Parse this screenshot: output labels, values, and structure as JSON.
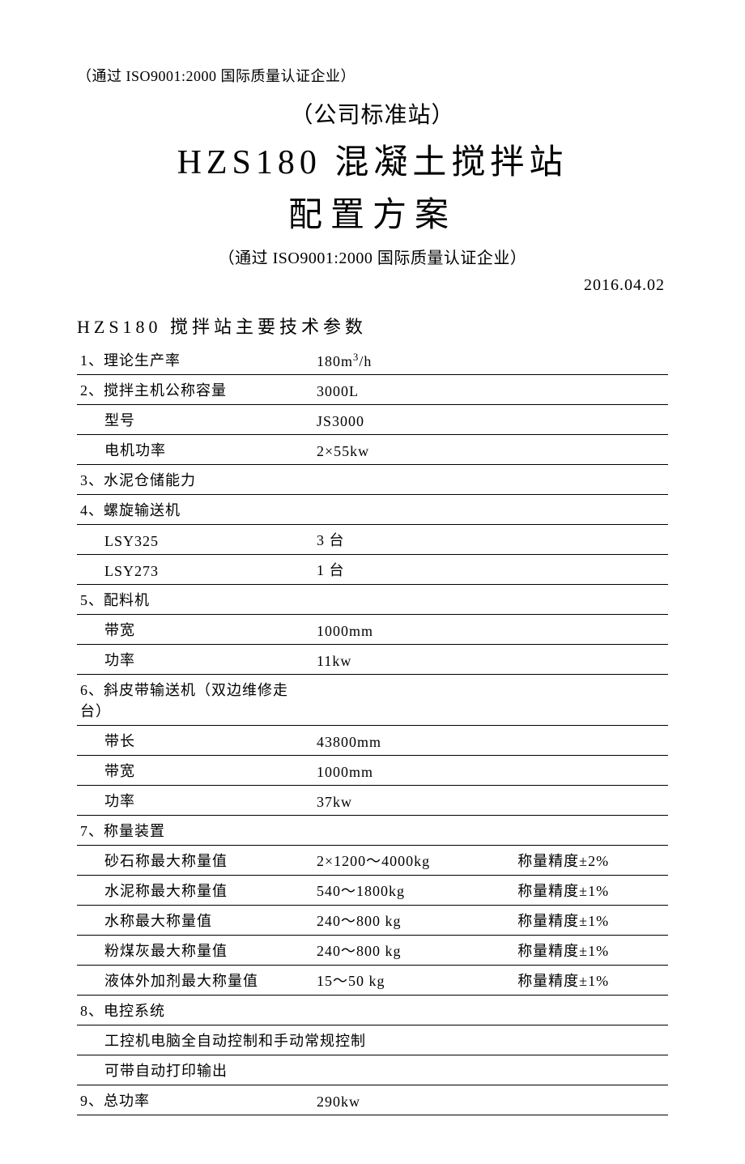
{
  "header": {
    "cert_top": "（通过 ISO9001:2000 国际质量认证企业）",
    "subtitle": "（公司标准站）",
    "title_line1": "HZS180 混凝土搅拌站",
    "title_line2": "配置方案",
    "cert_mid": "（通过 ISO9001:2000 国际质量认证企业）",
    "date": "2016.04.02"
  },
  "section_title": "HZS180 搅拌站主要技术参数",
  "rows": [
    {
      "c1": "1、理论生产率",
      "c2_html": "180m<sup>3</sup>/h",
      "c3": ""
    },
    {
      "c1": "2、搅拌主机公称容量",
      "c2": "3000L",
      "c3": ""
    },
    {
      "c1": "型号",
      "c2": "JS3000",
      "c3": "",
      "indent": true
    },
    {
      "c1": "电机功率",
      "c2": "2×55kw",
      "c3": "",
      "indent": true
    },
    {
      "c1": "3、水泥仓储能力",
      "c2": "",
      "c3": ""
    },
    {
      "c1": "4、螺旋输送机",
      "c2": "",
      "c3": ""
    },
    {
      "c1": "LSY325",
      "c2": "3 台",
      "c3": "",
      "indent": true
    },
    {
      "c1": "LSY273",
      "c2": "1 台",
      "c3": "",
      "indent": true
    },
    {
      "c1": "5、配料机",
      "c2": "",
      "c3": ""
    },
    {
      "c1": "带宽",
      "c2": "1000mm",
      "c3": "",
      "indent": true
    },
    {
      "c1": "功率",
      "c2": "11kw",
      "c3": "",
      "indent": true
    },
    {
      "c1": "6、斜皮带输送机（双边维修走台）",
      "c2": "",
      "c3": ""
    },
    {
      "c1": "带长",
      "c2": "43800mm",
      "c3": "",
      "indent": true
    },
    {
      "c1": "带宽",
      "c2": "1000mm",
      "c3": "",
      "indent": true
    },
    {
      "c1": "功率",
      "c2": "37kw",
      "c3": "",
      "indent": true
    },
    {
      "c1": "7、称量装置",
      "c2": "",
      "c3": ""
    },
    {
      "c1": "砂石称最大称量值",
      "c2": "2×1200～4000kg",
      "c3": "称量精度±2%",
      "indent": true
    },
    {
      "c1": "水泥称最大称量值",
      "c2": "540～1800kg",
      "c3": "称量精度±1%",
      "indent": true
    },
    {
      "c1": "水称最大称量值",
      "c2": "240～800 kg",
      "c3": "称量精度±1%",
      "indent": true
    },
    {
      "c1": "粉煤灰最大称量值",
      "c2": "240～800 kg",
      "c3": "称量精度±1%",
      "indent": true
    },
    {
      "c1": "液体外加剂最大称量值",
      "c2": "15～50 kg",
      "c3": "称量精度±1%",
      "indent": true
    },
    {
      "c1": "8、电控系统",
      "c2": "",
      "c3": ""
    },
    {
      "c1": "工控机电脑全自动控制和手动常规控制",
      "c2": "",
      "c3": "",
      "indent": true,
      "span": true
    },
    {
      "c1": "可带自动打印输出",
      "c2": "",
      "c3": "",
      "indent": true
    },
    {
      "c1": "9、总功率",
      "c2": "290kw",
      "c3": ""
    }
  ]
}
